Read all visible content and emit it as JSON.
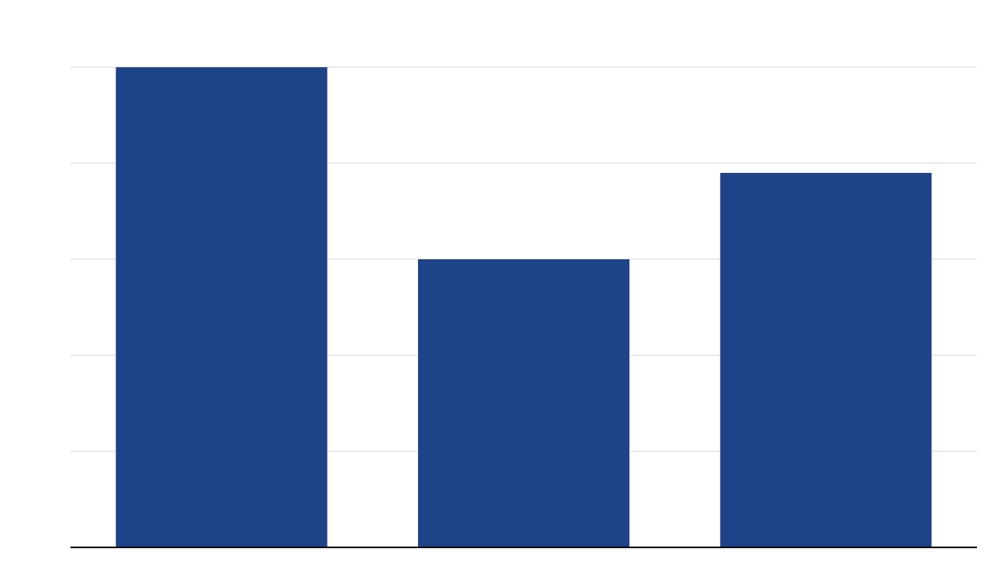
{
  "chart_data": {
    "type": "bar",
    "categories": [
      "",
      "",
      ""
    ],
    "values": [
      100,
      60,
      78
    ],
    "ylim": [
      0,
      100
    ],
    "gridlines": [
      0,
      20,
      40,
      60,
      80,
      100
    ],
    "grid": true,
    "legend": "none",
    "title": "",
    "xlabel": "",
    "ylabel": ""
  },
  "colors": {
    "bar": "#1f4388",
    "grid": "#e3e3e3",
    "axis": "#000000",
    "background": "#ffffff"
  }
}
